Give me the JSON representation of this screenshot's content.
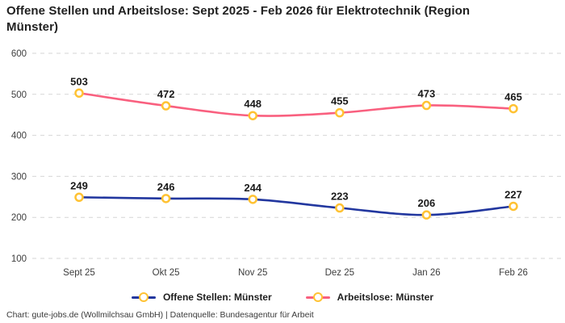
{
  "title": "Offene Stellen und Arbeitslose: Sept 2025 - Feb 2026 für Elektrotechnik (Region Münster)",
  "footer": "Chart: gute-jobs.de (Wollmilchsau GmbH) | Datenquelle: Bundesagentur für Arbeit",
  "colors": {
    "offene_stellen": "#22379f",
    "arbeitslose": "#f9607f",
    "marker_stroke": "#ffc233",
    "marker_fill": "#ffffff",
    "grid": "#d6d6d6",
    "tick": "#3d3d3d",
    "data_label": "#1a1a1a"
  },
  "chart_data": {
    "type": "line",
    "title": "Offene Stellen und Arbeitslose: Sept 2025 - Feb 2026 für Elektrotechnik (Region Münster)",
    "categories": [
      "Sept 25",
      "Okt 25",
      "Nov 25",
      "Dez 25",
      "Jan 26",
      "Feb 26"
    ],
    "series": [
      {
        "name": "Offene Stellen: Münster",
        "color": "#22379f",
        "values": [
          249,
          246,
          244,
          223,
          206,
          227
        ]
      },
      {
        "name": "Arbeitslose: Münster",
        "color": "#f9607f",
        "values": [
          503,
          472,
          448,
          455,
          473,
          465
        ]
      }
    ],
    "xlabel": "",
    "ylabel": "",
    "ylim": [
      100,
      600
    ],
    "yticks": [
      100,
      200,
      300,
      400,
      500,
      600
    ],
    "grid": true,
    "grid_style": "dashed",
    "smooth": true,
    "data_labels": true,
    "marker": {
      "shape": "circle",
      "stroke": "#ffc233",
      "fill": "#ffffff"
    },
    "legend_position": "bottom"
  },
  "legend": {
    "items": [
      {
        "label": "Offene Stellen: Münster",
        "color": "#22379f"
      },
      {
        "label": "Arbeitslose: Münster",
        "color": "#f9607f"
      }
    ]
  }
}
